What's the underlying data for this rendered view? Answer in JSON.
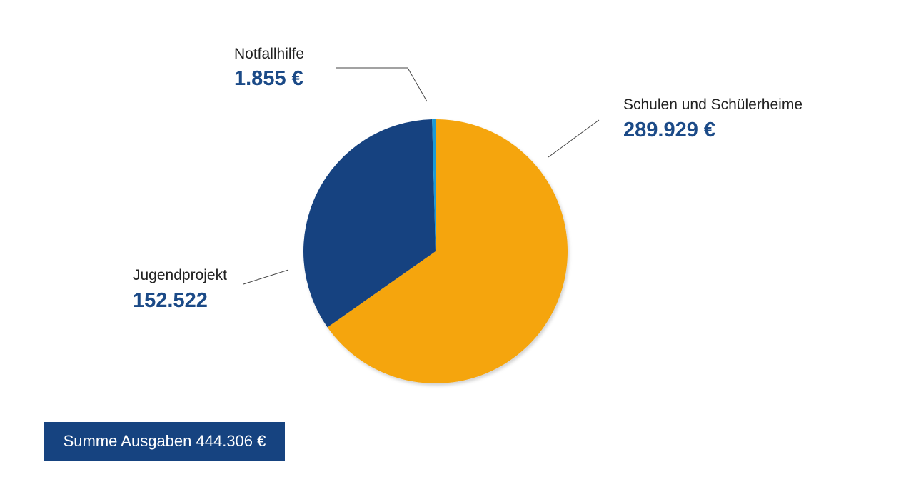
{
  "chart_data": {
    "type": "pie",
    "slices": [
      {
        "label": "Schulen und Schülerheime",
        "value": 289929,
        "display_value": "289.929 €",
        "color": "#F5A50A"
      },
      {
        "label": "Jugendprojekt",
        "value": 152522,
        "display_value": "152.522",
        "color": "#164380"
      },
      {
        "label": "Notfallhilfe",
        "value": 1855,
        "display_value": "1.855 €",
        "color": "#1D9AD6"
      }
    ],
    "start_angle_deg": 0,
    "direction": "clockwise"
  },
  "summary": {
    "total_label": "Summe Ausgaben 444.306 €"
  },
  "colors": {
    "value_text": "#1B4A87",
    "total_box": "#164380",
    "leader_line": "#444444"
  }
}
